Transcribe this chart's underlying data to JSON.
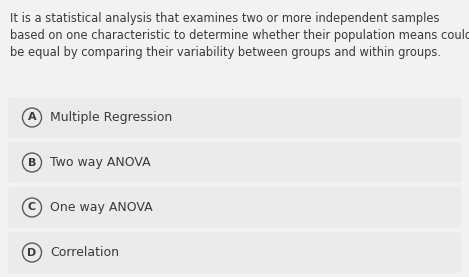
{
  "background_color": "#f2f2f2",
  "question_text_lines": [
    "It is a statistical analysis that examines two or more independent samples",
    "based on one characteristic to determine whether their population means could",
    "be equal by comparing their variability between groups and within groups."
  ],
  "options": [
    {
      "label": "A",
      "text": "Multiple Regression"
    },
    {
      "label": "B",
      "text": "Two way ANOVA"
    },
    {
      "label": "C",
      "text": "One way ANOVA"
    },
    {
      "label": "D",
      "text": "Correlation"
    }
  ],
  "question_fontsize": 8.3,
  "option_fontsize": 9.0,
  "label_fontsize": 8.0,
  "text_color": "#3a3a3a",
  "circle_edge_color": "#5a5a5a",
  "option_box_color": "#ebebeb",
  "fig_width": 4.69,
  "fig_height": 2.77,
  "dpi": 100
}
